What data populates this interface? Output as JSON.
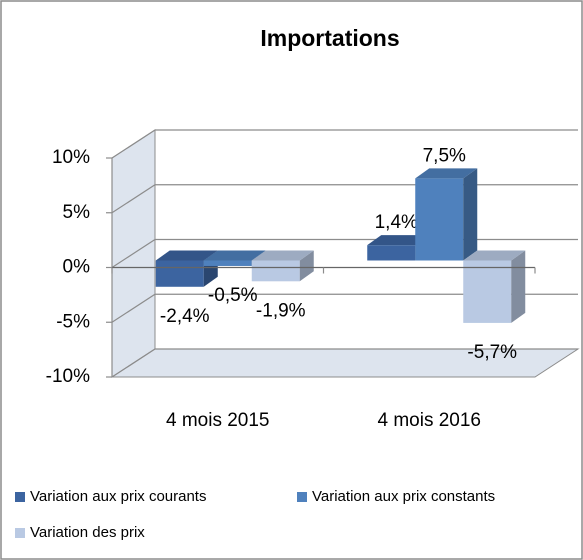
{
  "chart_data": {
    "type": "bar3d",
    "title": "Importations",
    "categories": [
      "4 mois 2015",
      "4 mois 2016"
    ],
    "series": [
      {
        "name": "Variation aux prix courants",
        "color": "#3c64a0",
        "values": [
          -2.4,
          1.4
        ],
        "value_labels": [
          "-2,4%",
          "1,4%"
        ]
      },
      {
        "name": "Variation aux prix constants",
        "color": "#4f81bd",
        "values": [
          -0.5,
          7.5
        ],
        "value_labels": [
          "-0,5%",
          "7,5%"
        ]
      },
      {
        "name": "Variation des prix",
        "color": "#b9c9e3",
        "values": [
          -1.9,
          -5.7
        ],
        "value_labels": [
          "-1,9%",
          "-5,7%"
        ]
      }
    ],
    "ylim": [
      -10,
      10
    ],
    "yticks": [
      {
        "value": -10,
        "label": "-10%"
      },
      {
        "value": -5,
        "label": "-5%"
      },
      {
        "value": 0,
        "label": "0%"
      },
      {
        "value": 5,
        "label": "5%"
      },
      {
        "value": 10,
        "label": "10%"
      }
    ],
    "grid": true,
    "legend": "bottom"
  }
}
